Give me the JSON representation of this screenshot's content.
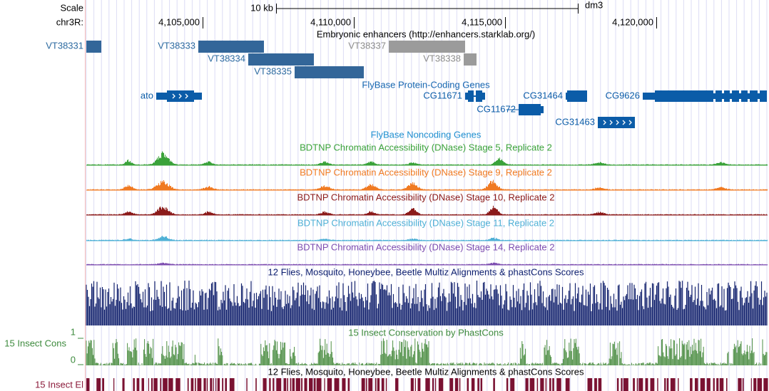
{
  "header": {
    "scale": "Scale",
    "scale_bar": "10 kb",
    "assembly": "dm3",
    "chrom": "chr3R:",
    "ticks": [
      "4,105,000",
      "4,110,000",
      "4,115,000",
      "4,120,000"
    ]
  },
  "enhancers": {
    "title": "Embryonic enhancers (http://enhancers.starklab.org/)",
    "items": [
      "VT38331",
      "VT38333",
      "VT38337",
      "VT38334",
      "VT38338",
      "VT38335"
    ]
  },
  "genes": {
    "title": "FlyBase Protein-Coding Genes",
    "items": [
      "ato",
      "CG11671",
      "CG31464",
      "CG9626",
      "CG11672",
      "CG31463"
    ]
  },
  "noncoding": {
    "title": "FlyBase Noncoding Genes"
  },
  "dnase": [
    {
      "title": "BDTNP Chromatin Accessibility (DNase) Stage 5, Replicate 2"
    },
    {
      "title": "BDTNP Chromatin Accessibility (DNase) Stage 9, Replicate 2"
    },
    {
      "title": "BDTNP Chromatin Accessibility (DNase) Stage 10, Replicate 2"
    },
    {
      "title": "BDTNP Chromatin Accessibility (DNase) Stage 11, Replicate 2"
    },
    {
      "title": "BDTNP Chromatin Accessibility (DNase) Stage 14, Replicate 2"
    }
  ],
  "multiz": {
    "title": "12 Flies, Mosquito, Honeybee, Beetle Multiz Alignments & phastCons Scores"
  },
  "cons": {
    "title": "15 Insect Conservation by PhastCons",
    "side_label": "15 Insect Cons",
    "max_label": "1",
    "min_label": "0"
  },
  "elements": {
    "title": "12 Flies, Mosquito, Honeybee, Beetle Multiz Alignments & phastCons Scores",
    "side_label": "15 Insect El"
  }
}
